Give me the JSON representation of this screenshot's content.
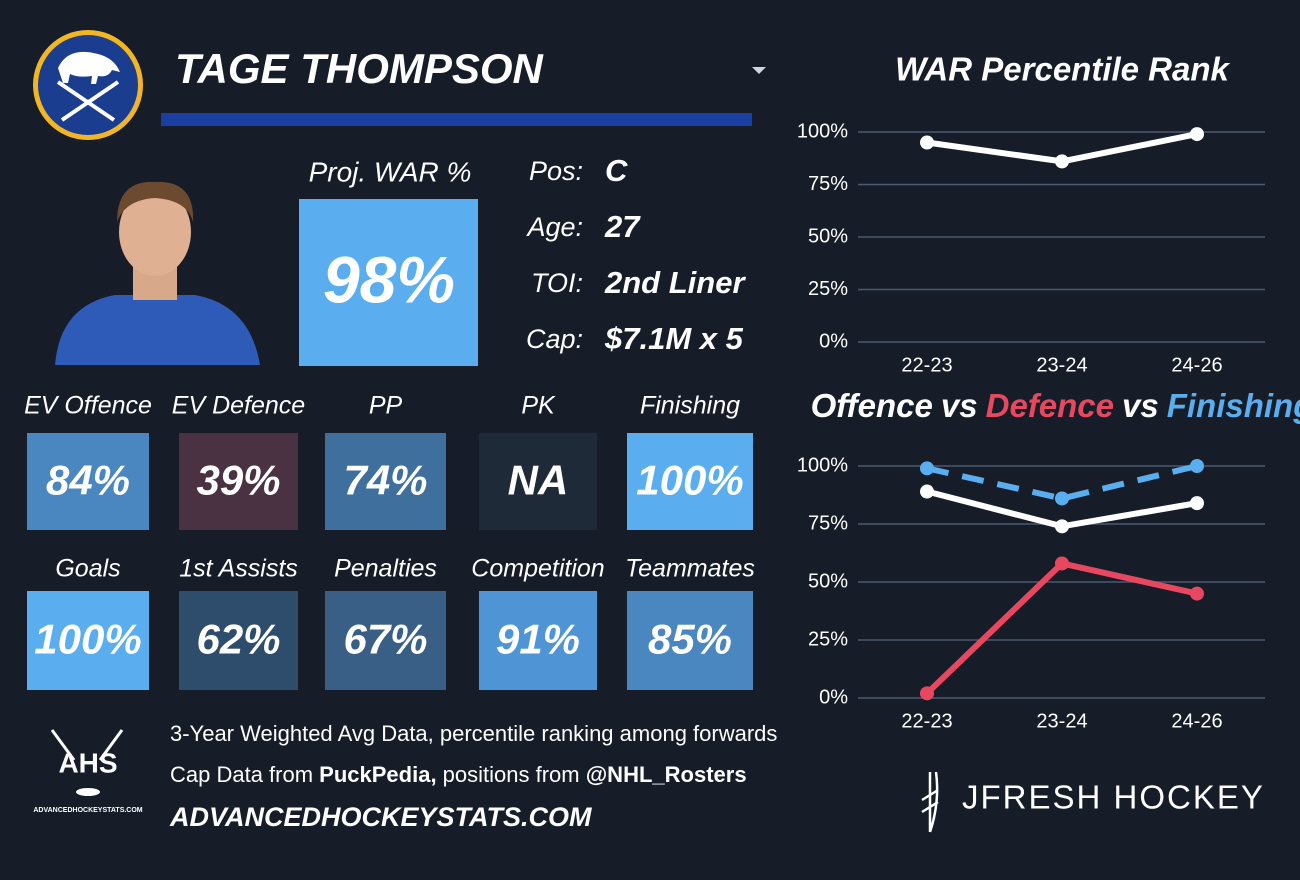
{
  "player": {
    "name": "TAGE THOMPSON",
    "war_label": "Proj. WAR %",
    "war_value": "98%",
    "war_color": "#5aaeef",
    "info": [
      {
        "label": "Pos:",
        "value": "C"
      },
      {
        "label": "Age:",
        "value": "27"
      },
      {
        "label": "TOI:",
        "value": "2nd Liner"
      },
      {
        "label": "Cap:",
        "value": "$7.1M x 5"
      }
    ]
  },
  "tiles": [
    {
      "label": "EV Offence",
      "value": "84%",
      "color": "#4a86bf"
    },
    {
      "label": "EV Defence",
      "value": "39%",
      "color": "#4a3242"
    },
    {
      "label": "PP",
      "value": "74%",
      "color": "#3f6f9c"
    },
    {
      "label": "PK",
      "value": "NA",
      "color": "#1f2a38"
    },
    {
      "label": "Finishing",
      "value": "100%",
      "color": "#5aaeef"
    },
    {
      "label": "Goals",
      "value": "100%",
      "color": "#5aaeef"
    },
    {
      "label": "1st Assists",
      "value": "62%",
      "color": "#2e4c6b"
    },
    {
      "label": "Penalties",
      "value": "67%",
      "color": "#3a5f86"
    },
    {
      "label": "Competition",
      "value": "91%",
      "color": "#4f94d4"
    },
    {
      "label": "Teammates",
      "value": "85%",
      "color": "#4a86bf"
    }
  ],
  "footer": [
    [
      {
        "text": "3-Year Weighted Avg Data, percentile ranking among forwards",
        "weight": "normal"
      }
    ],
    [
      {
        "text": "Cap Data from ",
        "weight": "normal"
      },
      {
        "text": "PuckPedia,",
        "weight": "bold"
      },
      {
        "text": " positions from ",
        "weight": "normal"
      },
      {
        "text": "@NHL_Rosters",
        "weight": "bold"
      }
    ],
    [
      {
        "text": "ADVANCEDHOCKEYSTATS.COM",
        "weight": "bold-italic"
      }
    ]
  ],
  "logos": {
    "ahs": "AHS",
    "ahs_site": "ADVANCEDHOCKEYSTATS.COM",
    "brand": "JFRESH HOCKEY"
  },
  "chart_data": [
    {
      "type": "line",
      "title": "WAR Percentile Rank",
      "categories": [
        "22-23",
        "23-24",
        "24-26"
      ],
      "series": [
        {
          "name": "WAR",
          "color": "#ffffff",
          "values": [
            95,
            86,
            99
          ]
        }
      ],
      "ylim": [
        0,
        100
      ],
      "yticks": [
        {
          "value": 0,
          "label": "0%"
        },
        {
          "value": 25,
          "label": "25%"
        },
        {
          "value": 50,
          "label": "50%"
        },
        {
          "value": 75,
          "label": "75%"
        },
        {
          "value": 100,
          "label": "100%"
        }
      ],
      "grid": true
    },
    {
      "type": "line",
      "title_joiner": "vs",
      "categories": [
        "22-23",
        "23-24",
        "24-26"
      ],
      "series": [
        {
          "name": "Offence",
          "color": "#ffffff",
          "values": [
            89,
            74,
            84
          ]
        },
        {
          "name": "Defence",
          "color": "#e8485f",
          "values": [
            2,
            58,
            45
          ]
        },
        {
          "name": "Finishing",
          "color": "#5aaeef",
          "values": [
            99,
            86,
            100
          ],
          "dash": true
        }
      ],
      "ylim": [
        0,
        100
      ],
      "yticks": [
        {
          "value": 0,
          "label": "0%"
        },
        {
          "value": 25,
          "label": "25%"
        },
        {
          "value": 50,
          "label": "50%"
        },
        {
          "value": 75,
          "label": "75%"
        },
        {
          "value": 100,
          "label": "100%"
        }
      ],
      "grid": true
    }
  ]
}
